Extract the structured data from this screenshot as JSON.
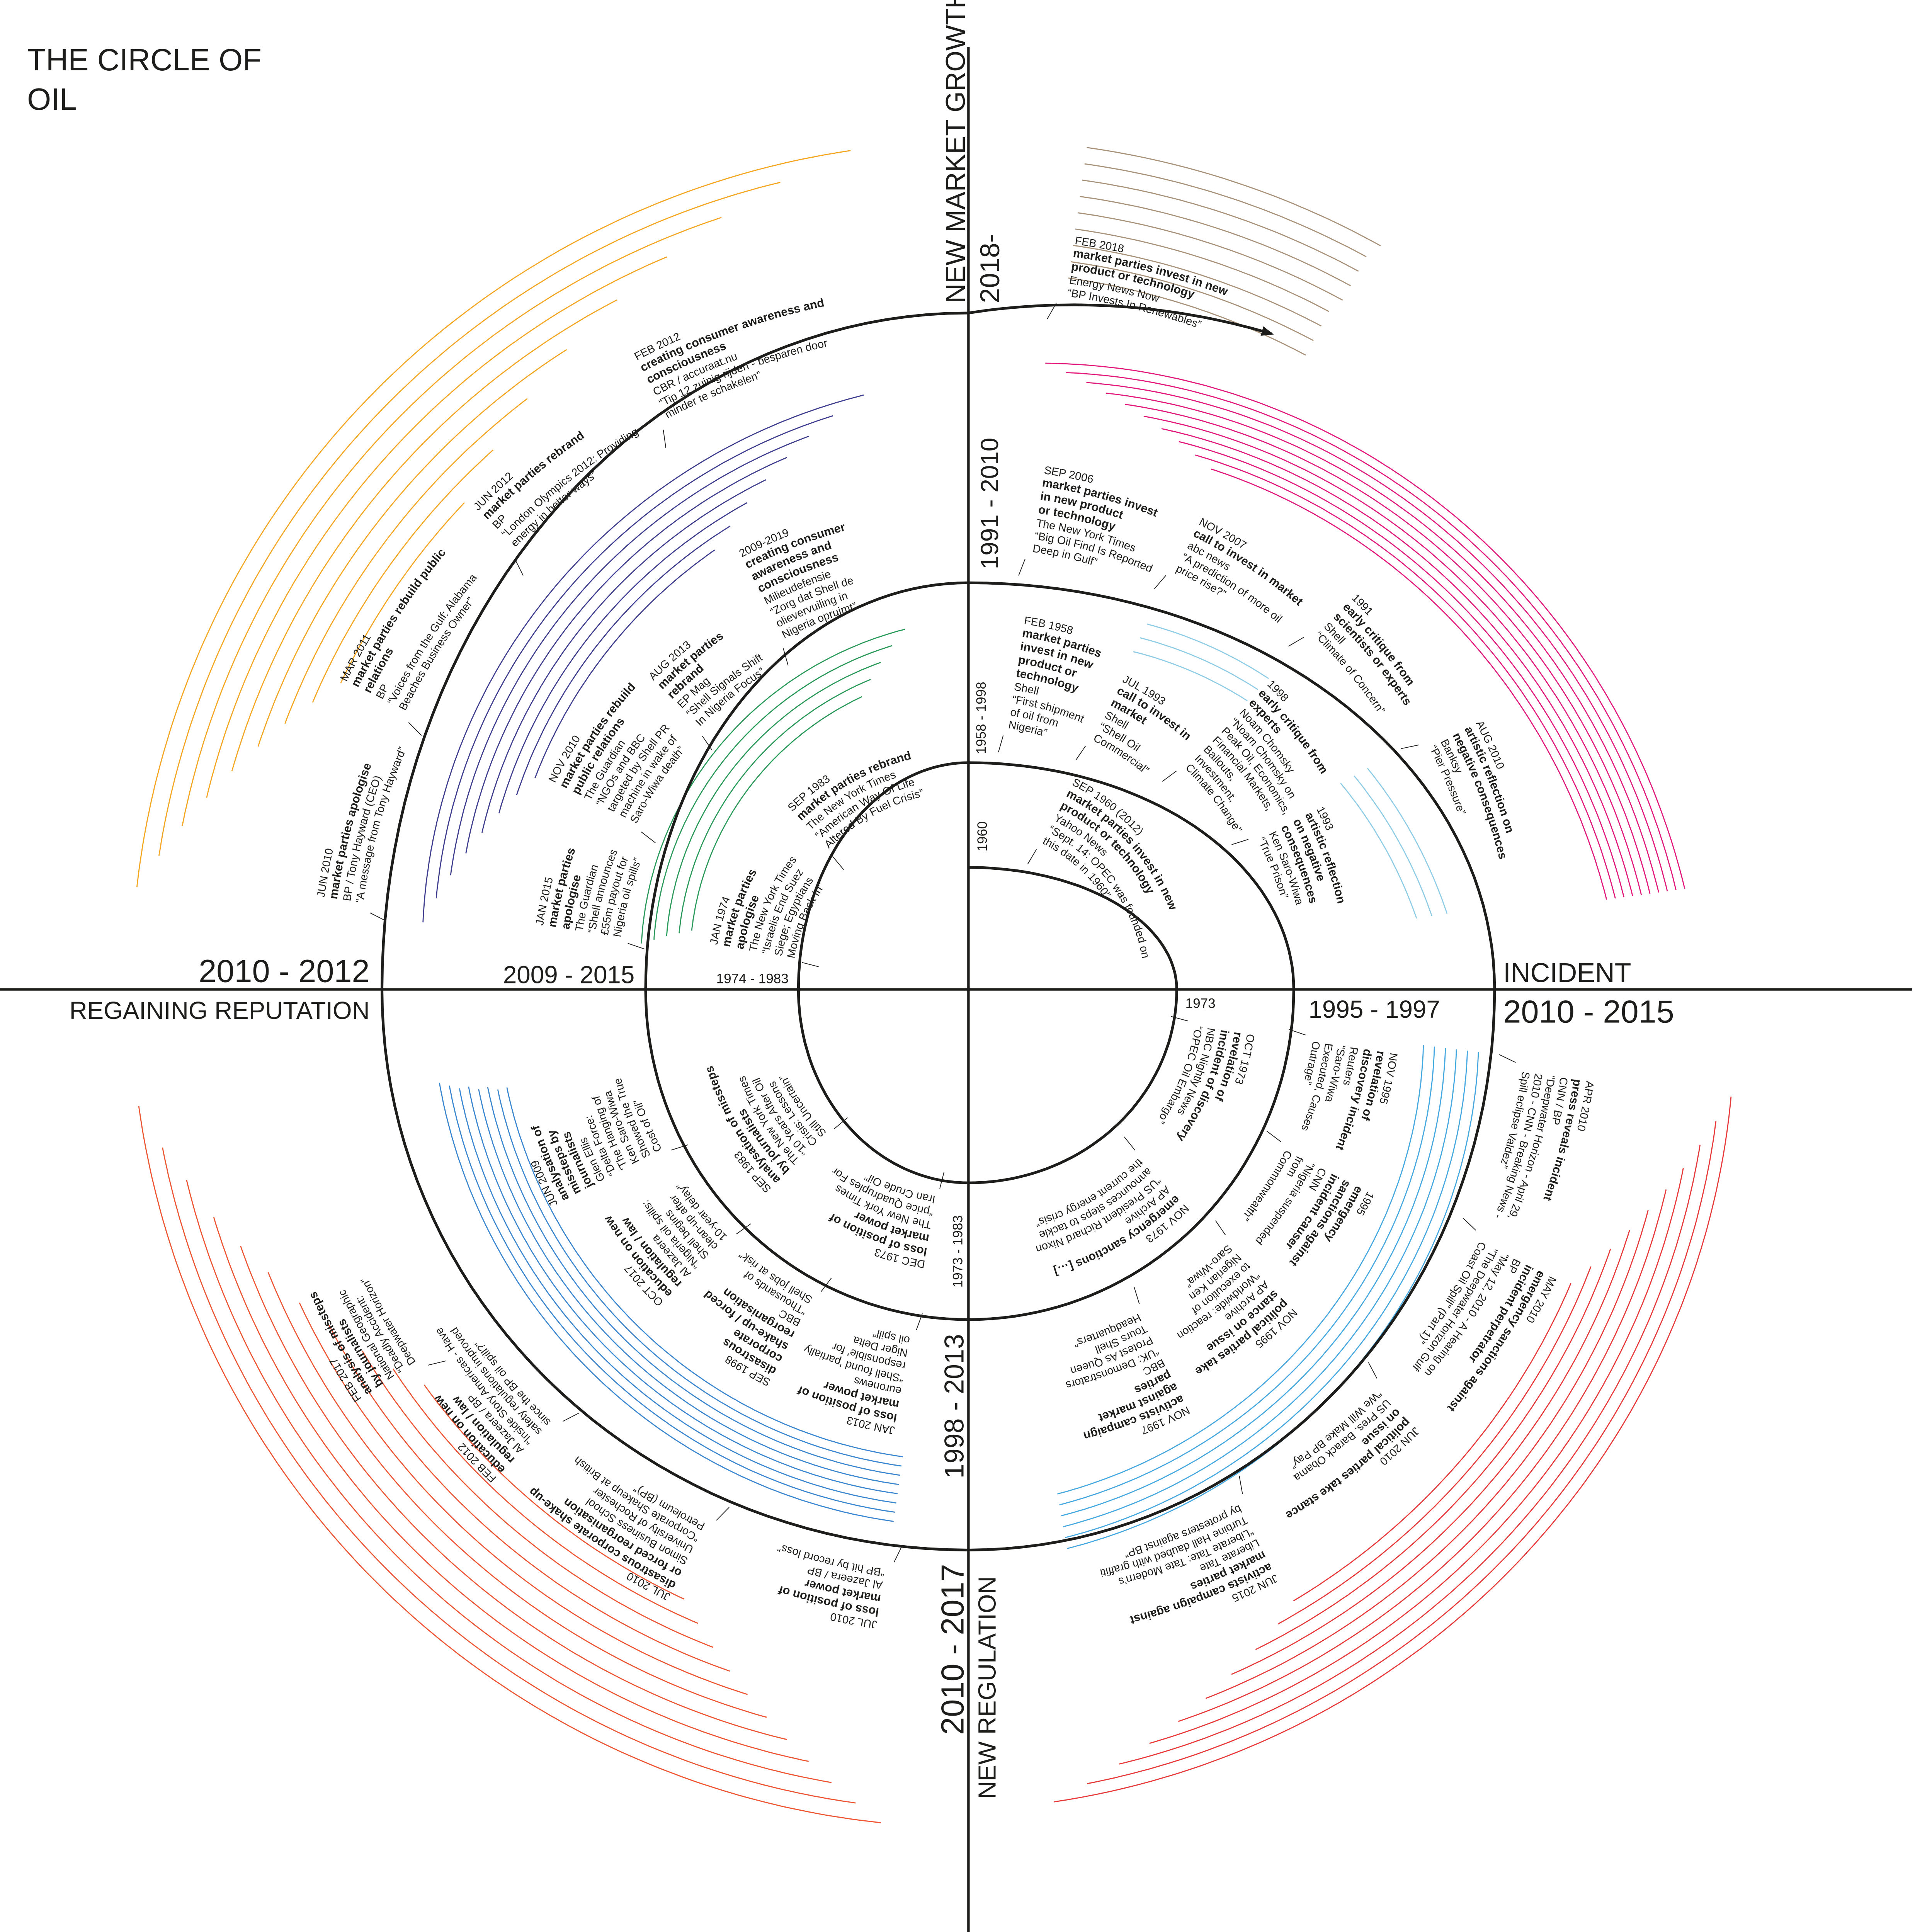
{
  "title_lines": [
    "THE CIRCLE OF",
    "OIL"
  ],
  "labels": {
    "new_market_growth": "NEW MARKET GROWTH",
    "y2018": "2018-",
    "y1991_2010": "1991 - 2010",
    "y1958_1998": "1958 - 1998",
    "y1960": "1960",
    "y2010_2012": "2010 - 2012",
    "regaining_reputation": "REGAINING REPUTATION",
    "y2009_2015": "2009 - 2015",
    "y1974_1983": "1974 - 1983",
    "y1973": "1973",
    "y1995_1997": "1995 - 1997",
    "incident": "INCIDENT",
    "y2010_2015": "2010 - 2015",
    "y1973_1983": "1973 - 1983",
    "y1998_2013": "1998 - 2013",
    "y2010_2017": "2010 - 2017",
    "new_regulation": "NEW REGULATION"
  },
  "colors": {
    "ink": "#1d1d1b",
    "brown": "#a8927a",
    "pink": "#e2187a",
    "light_blue": "#8fcde6",
    "purple": "#3f3d8f",
    "green": "#2a9a5a",
    "orange": "#f5a623",
    "red_left": "#ee5533",
    "red_right": "#e83a3a",
    "blue_left": "#3a86d0",
    "blue_right": "#45a8e0"
  },
  "events": [
    {
      "date": "FEB 2018",
      "title": [
        "market parties invest in new",
        "product or technology"
      ],
      "source": [
        "Energy News Now"
      ],
      "quote": [
        "“BP Invests In Renewables”"
      ]
    },
    {
      "date": "SEP 2006",
      "title": [
        "market parties invest",
        "in new product",
        "or technology"
      ],
      "source": [
        "The New York Times"
      ],
      "quote": [
        "“Big Oil Find Is Reported",
        "Deep in Gulf”"
      ]
    },
    {
      "date": "NOV 2007",
      "title": [
        "call to invest in market"
      ],
      "source": [
        "abc news"
      ],
      "quote": [
        "“A prediction of more oil",
        "price rise?”"
      ]
    },
    {
      "date": "1991",
      "title": [
        "early critique from",
        "scientists or experts"
      ],
      "source": [
        "Shell"
      ],
      "quote": [
        "“Climate of Concern”"
      ]
    },
    {
      "date": "AUG 2010",
      "title": [
        "artistic reflection on",
        "negative consequences"
      ],
      "source": [
        "Banksy"
      ],
      "quote": [
        "“Pier Pressure”"
      ]
    },
    {
      "date": "FEB 1958",
      "title": [
        "market parties",
        "invest in new",
        "product or",
        "technology"
      ],
      "source": [
        "Shell"
      ],
      "quote": [
        "“First shipment",
        "of oil from",
        "Nigeria”"
      ]
    },
    {
      "date": "JUL 1993",
      "title": [
        "call to invest in",
        "market"
      ],
      "source": [
        "Shell"
      ],
      "quote": [
        "“Shell Oil",
        "Commercial”"
      ]
    },
    {
      "date": "1998",
      "title": [
        "early critique from",
        "experts"
      ],
      "source": [
        "Noam Chomsky"
      ],
      "quote": [
        "“Noam Chomsky on",
        "Peak Oil, Economics,",
        "Financial Markets,",
        "Bailouts,",
        "Investment,",
        "Climate Change”"
      ]
    },
    {
      "date": "1993",
      "title": [
        "artistic reflection",
        "on negative",
        "consequences"
      ],
      "source": [
        "Ken Saro-Wiwa"
      ],
      "quote": [
        "“True Prison”"
      ]
    },
    {
      "date": "SEP 1960 (2012)",
      "title": [
        "market parties invest in new",
        "product or technology"
      ],
      "source": [
        "Yahoo News"
      ],
      "quote": [
        "“Sept. 14: OPEC was founded on",
        "this date in 1960”"
      ]
    },
    {
      "date": "JUN 2010",
      "title": [
        "market parties apologise"
      ],
      "source": [
        "BP / Tony Hayward (CEO)"
      ],
      "quote": [
        "“A message from Tony Hayward”"
      ]
    },
    {
      "date": "MAR 2011",
      "title": [
        "market parties rebuild public",
        "relations"
      ],
      "source": [
        "BP"
      ],
      "quote": [
        "“Voices from the Gulf: Alabama",
        "Beaches Business Owner”"
      ]
    },
    {
      "date": "JUN 2012",
      "title": [
        "market parties rebrand"
      ],
      "source": [
        "BP"
      ],
      "quote": [
        "“London Olympics 2012: Providing",
        "energy in better ways”"
      ]
    },
    {
      "date": "FEB 2012",
      "title": [
        "creating consumer awareness and",
        "consciousness"
      ],
      "source": [
        "CBR / accuraat.nu"
      ],
      "quote": [
        "“Tip 12 zuinig rijden - besparen door",
        "minder te schakelen”"
      ]
    },
    {
      "date": "JAN 2015",
      "title": [
        "market parties",
        "apologise"
      ],
      "source": [
        "The Guardian"
      ],
      "quote": [
        "“Shell announces",
        "£55m payout for",
        "Nigeria oil spills”"
      ]
    },
    {
      "date": "NOV 2010",
      "title": [
        "market parties rebuild",
        "public relations"
      ],
      "source": [
        "The Guardian"
      ],
      "quote": [
        "“NGOs and BBC",
        "targeted by Shell PR",
        "machine in wake of",
        "Saro-Wiwa death”"
      ]
    },
    {
      "date": "AUG 2013",
      "title": [
        "market parties",
        "rebrand"
      ],
      "source": [
        "EP Mag"
      ],
      "quote": [
        "“Shell Signals Shift",
        "In Nigeria Focus”"
      ]
    },
    {
      "date": "2009-2019",
      "title": [
        "creating consumer",
        "awareness and",
        "consciousness"
      ],
      "source": [
        "Milieudefensie"
      ],
      "quote": [
        "“Zorg dat Shell de",
        "olievervuiling in",
        "Nigeria opruimt”"
      ]
    },
    {
      "date": "JAN 1974",
      "title": [
        "market parties",
        "apologise"
      ],
      "source": [
        "The New York Times"
      ],
      "quote": [
        "“Israelis End Suez",
        "Siege; Egyptians",
        "Moving Back In”"
      ]
    },
    {
      "date": "SEP 1983",
      "title": [
        "market parties rebrand"
      ],
      "source": [
        "The New York Times"
      ],
      "quote": [
        "“American Way Of Life",
        "Altered By Fuel Crisis”"
      ]
    },
    {
      "date": "OCT 1973",
      "title": [
        "revelation of",
        "incident of discovery"
      ],
      "source": [
        "NBC Nightly News"
      ],
      "quote": [
        "“OPEC Oil Embargo”"
      ]
    },
    {
      "date": "NOV 1973",
      "title": [
        "emergency sanctions […]"
      ],
      "source": [
        "AP Archive"
      ],
      "quote": [
        "“US President Richard Nixon",
        "announces steps to tackle",
        "the current energy crisis”"
      ]
    },
    {
      "date": "NOV 1995",
      "title": [
        "revelation of",
        "discovery incident"
      ],
      "source": [
        "Reuters"
      ],
      "quote": [
        "“Saro-Wiwa",
        "Executed, Causes",
        "Outrage”"
      ]
    },
    {
      "date": "1995",
      "title": [
        "emergency",
        "sanctions against",
        "incident causer"
      ],
      "source": [
        "CNN"
      ],
      "quote": [
        "“Nigeria suspended",
        "from",
        "Commonwealth”"
      ]
    },
    {
      "date": "NOV 1995",
      "title": [
        "political parties take",
        "stance on issue"
      ],
      "source": [
        "AP Archive"
      ],
      "quote": [
        "“Worldwide: reaction",
        "to execution of",
        "Nigerian Ken",
        "Saro-Wiwa”"
      ]
    },
    {
      "date": "NOV 1997",
      "title": [
        "activists campaign",
        "against market",
        "parties"
      ],
      "source": [
        "BBC"
      ],
      "quote": [
        "“UK: Demonstrators",
        "Protest As Queen",
        "Tours Shell",
        "Headquarters”"
      ]
    },
    {
      "date": "APR 2010",
      "title": [
        "press reveals incident"
      ],
      "source": [
        "CNN / BP"
      ],
      "quote": [
        "“Deepwater Horizon - April 29,",
        "2010 - CNN - Breaking News -",
        "Spill eclipse Valdez”"
      ]
    },
    {
      "date": "MAY 2010",
      "title": [
        "emergency sanctions against",
        "incident perpetrator"
      ],
      "source": [
        "BP"
      ],
      "quote": [
        "“May 12, 2010 - A Hearing on",
        "\"The Deepwater Horizon Gulf",
        "Coast Oil Spill\" (Part 1)”"
      ]
    },
    {
      "date": "JUN 2010",
      "title": [
        "political parties take stance",
        "on issue"
      ],
      "source": [
        "US Pres. Barack Obama"
      ],
      "quote": [
        "“We Will Make BP Pay”"
      ]
    },
    {
      "date": "JUN 2015",
      "title": [
        "activists campaign against",
        "market parties"
      ],
      "source": [
        "Liberate Tate"
      ],
      "quote": [
        "“Liberate Tate: Tate Modern's",
        "Turbine Hall daubed with graffiti",
        "by protesters against BP”"
      ]
    },
    {
      "date": "DEC 1973",
      "title": [
        "loss of position of",
        "market power"
      ],
      "source": [
        "The New York Times"
      ],
      "quote": [
        "“price Quadruples For",
        "Iran Crude Oil”"
      ]
    },
    {
      "date": "SEP 1983",
      "title": [
        "analysation of missteps",
        "by journalists"
      ],
      "source": [
        "The New York Times"
      ],
      "quote": [
        "“10 Years After Oil",
        "Crisis: Lessons",
        "Still Uncertain”"
      ]
    },
    {
      "date": "JAN 2013",
      "title": [
        "loss of position of",
        "market power"
      ],
      "source": [
        "euronews"
      ],
      "quote": [
        "“Shell found 'partially",
        "responsible' for",
        "Niger Delta",
        "oil spill”"
      ]
    },
    {
      "date": "SEP 1998",
      "title": [
        "disastrous",
        "corporate",
        "shake-up / forced",
        "reorganisation"
      ],
      "source": [
        "BBC"
      ],
      "quote": [
        "“Thousands of",
        "Shell jobs at risk”"
      ]
    },
    {
      "date": "OCT 2017",
      "title": [
        "education on new",
        "regulation / law"
      ],
      "source": [
        "Al Jazeera"
      ],
      "quote": [
        "“Nigeria oil spills:",
        "Shell begins",
        "clean-up after",
        "10-year delay”"
      ]
    },
    {
      "date": "JUN 2009",
      "title": [
        "analysation of",
        "missteps by",
        "journalists"
      ],
      "source": [
        "Glen Ellis"
      ],
      "quote": [
        "“Delta Force:",
        "'The Hanging of",
        "Ken Saro-Wiwa",
        "Showed the True",
        "Cost of Oil”"
      ]
    },
    {
      "date": "FEB 2017",
      "title": [
        "analysis of missteps",
        "by journalists"
      ],
      "source": [
        "National Geographic"
      ],
      "quote": [
        "“Deadly Accident:",
        "Deepwater Horizon”"
      ]
    },
    {
      "date": "FEB 2012",
      "title": [
        "education on new",
        "regulation / law"
      ],
      "source": [
        "Al Jazeera / BP"
      ],
      "quote": [
        "“Inside Story Americas - Have",
        "safety regulations improved",
        "since the BP oil spill?”"
      ]
    },
    {
      "date": "JUL 2010",
      "title": [
        "disastrous corporate shake-up",
        "or forced reorganisation"
      ],
      "source": [
        "Simon Business School",
        "University of Rochester"
      ],
      "quote": [
        "“Corporate Shakeup at British",
        "Petroleum (BP)”"
      ]
    },
    {
      "date": "JUL 2010",
      "title": [
        "loss of position of",
        "market power"
      ],
      "source": [
        "Al Jazeera / BP"
      ],
      "quote": [
        "“BP hit by record loss”"
      ]
    }
  ]
}
